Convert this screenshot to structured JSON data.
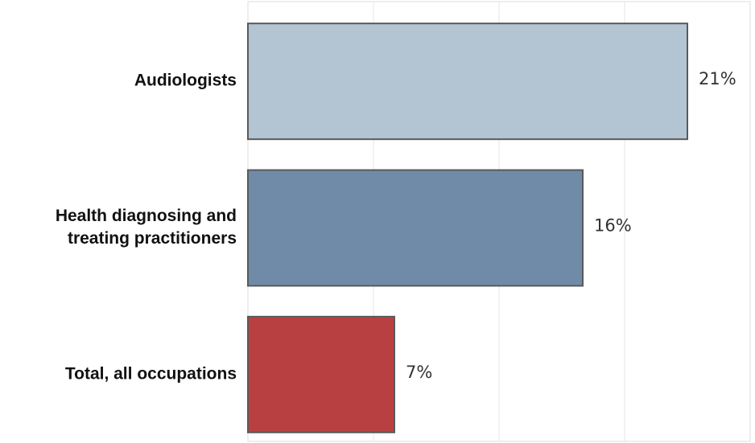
{
  "chart_data": {
    "type": "bar",
    "orientation": "horizontal",
    "title": "",
    "xlabel": "",
    "ylabel": "",
    "categories": [
      [
        "Audiologists"
      ],
      [
        "Health diagnosing and",
        "treating practitioners"
      ],
      [
        "Total, all occupations"
      ]
    ],
    "values": [
      21,
      16,
      7
    ],
    "value_labels": [
      "21%",
      "16%",
      "7%"
    ],
    "xlim": [
      0,
      24
    ],
    "grid": true,
    "legend": "none",
    "colors": [
      "#b3c4d3",
      "#6f8ba8",
      "#b94040"
    ],
    "border_color": "#5a5a5a",
    "grid_color": "#e6e6e6"
  }
}
